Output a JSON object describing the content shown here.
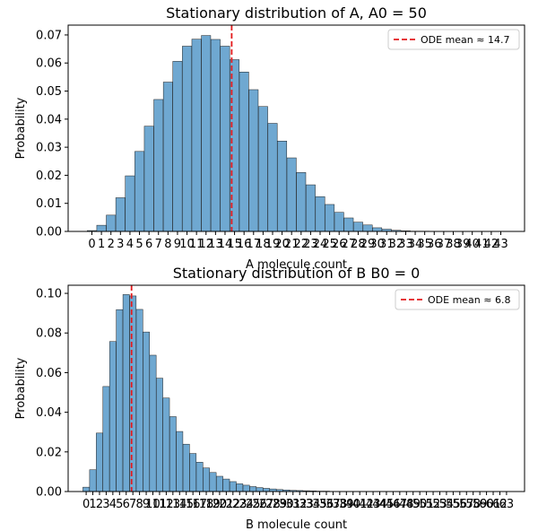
{
  "chart_data": [
    {
      "type": "bar",
      "title": "Stationary distribution of A, A0 = 50",
      "xlabel": "A molecule count",
      "ylabel": "Probability",
      "xlim": [
        -2.5,
        45.5
      ],
      "ylim": [
        0,
        0.0735
      ],
      "yticks": [
        0.0,
        0.01,
        0.02,
        0.03,
        0.04,
        0.05,
        0.06,
        0.07
      ],
      "ytick_labels": [
        "0.00",
        "0.01",
        "0.02",
        "0.03",
        "0.04",
        "0.05",
        "0.06",
        "0.07"
      ],
      "xtick_labels": [
        "0",
        "1",
        "2",
        "3",
        "4",
        "5",
        "6",
        "7",
        "8",
        "9",
        "10",
        "11",
        "12",
        "13",
        "14",
        "15",
        "16",
        "17",
        "18",
        "19",
        "20",
        "21",
        "22",
        "23",
        "24",
        "25",
        "26",
        "27",
        "28",
        "29",
        "30",
        "31",
        "32",
        "33",
        "34",
        "35",
        "36",
        "37",
        "38",
        "39",
        "40",
        "41",
        "42",
        "43"
      ],
      "bar_color": "#6fa8d1",
      "x": [
        0,
        1,
        2,
        3,
        4,
        5,
        6,
        7,
        8,
        9,
        10,
        11,
        12,
        13,
        14,
        15,
        16,
        17,
        18,
        19,
        20,
        21,
        22,
        23,
        24,
        25,
        26,
        27,
        28,
        29,
        30,
        31,
        32,
        33,
        34,
        35,
        36,
        37,
        38,
        39,
        40,
        41,
        42,
        43
      ],
      "values": [
        0.0003,
        0.0022,
        0.0058,
        0.012,
        0.0198,
        0.0285,
        0.0375,
        0.047,
        0.0532,
        0.0606,
        0.066,
        0.0685,
        0.0698,
        0.0684,
        0.066,
        0.0612,
        0.0568,
        0.0505,
        0.0445,
        0.0385,
        0.0322,
        0.0262,
        0.021,
        0.0166,
        0.0124,
        0.0096,
        0.0068,
        0.0048,
        0.0033,
        0.0023,
        0.0013,
        0.0008,
        0.0004,
        0.0002,
        0.0001,
        0.0001,
        0,
        0,
        0,
        0,
        0,
        0,
        0,
        0
      ],
      "vline": {
        "x": 14.7,
        "color": "#e31a1c",
        "label": "ODE mean ≈ 14.7"
      },
      "legend_position": "top-right"
    },
    {
      "type": "bar",
      "title": "Stationary distribution of B B0 = 0",
      "xlabel": "B molecule count",
      "ylabel": "Probability",
      "xlim": [
        -2.7,
        65.7
      ],
      "ylim": [
        0,
        0.1041
      ],
      "yticks": [
        0.0,
        0.02,
        0.04,
        0.06,
        0.08,
        0.1
      ],
      "ytick_labels": [
        "0.00",
        "0.02",
        "0.04",
        "0.06",
        "0.08",
        "0.10"
      ],
      "xtick_labels": [
        "0",
        "1",
        "2",
        "3",
        "4",
        "5",
        "6",
        "7",
        "8",
        "9",
        "10",
        "11",
        "12",
        "13",
        "14",
        "15",
        "16",
        "17",
        "18",
        "19",
        "20",
        "21",
        "22",
        "23",
        "24",
        "25",
        "26",
        "27",
        "28",
        "29",
        "30",
        "31",
        "32",
        "33",
        "34",
        "35",
        "36",
        "37",
        "38",
        "39",
        "40",
        "41",
        "42",
        "43",
        "44",
        "45",
        "46",
        "47",
        "48",
        "49",
        "50",
        "51",
        "52",
        "53",
        "54",
        "55",
        "56",
        "57",
        "58",
        "59",
        "60",
        "61",
        "62",
        "63"
      ],
      "bar_color": "#6fa8d1",
      "x": [
        0,
        1,
        2,
        3,
        4,
        5,
        6,
        7,
        8,
        9,
        10,
        11,
        12,
        13,
        14,
        15,
        16,
        17,
        18,
        19,
        20,
        21,
        22,
        23,
        24,
        25,
        26,
        27,
        28,
        29,
        30,
        31,
        32,
        33,
        34,
        35,
        36,
        37,
        38,
        39,
        40,
        41,
        42,
        43,
        44,
        45,
        46,
        47,
        48,
        49,
        50,
        51,
        52,
        53,
        54,
        55,
        56,
        57,
        58,
        59,
        60,
        61,
        62,
        63
      ],
      "values": [
        0.0022,
        0.011,
        0.0295,
        0.053,
        0.0757,
        0.0918,
        0.0994,
        0.0987,
        0.0919,
        0.0805,
        0.0688,
        0.0572,
        0.0472,
        0.0378,
        0.0303,
        0.0239,
        0.0192,
        0.0148,
        0.0119,
        0.0096,
        0.0077,
        0.0063,
        0.005,
        0.0039,
        0.0032,
        0.0025,
        0.002,
        0.0016,
        0.0013,
        0.001,
        0.0008,
        0.0006,
        0.0005,
        0.0004,
        0.0003,
        0.0002,
        0.0002,
        0.0001,
        0.0001,
        0.0001,
        0.0001,
        0.0001,
        0.0001,
        0.0001,
        0,
        0,
        0,
        0,
        0,
        0,
        0,
        0,
        0,
        0,
        0,
        0,
        0,
        0,
        0,
        0,
        0,
        0,
        0,
        0
      ],
      "vline": {
        "x": 6.8,
        "color": "#e31a1c",
        "label": "ODE mean ≈ 6.8"
      },
      "legend_position": "top-right"
    }
  ]
}
